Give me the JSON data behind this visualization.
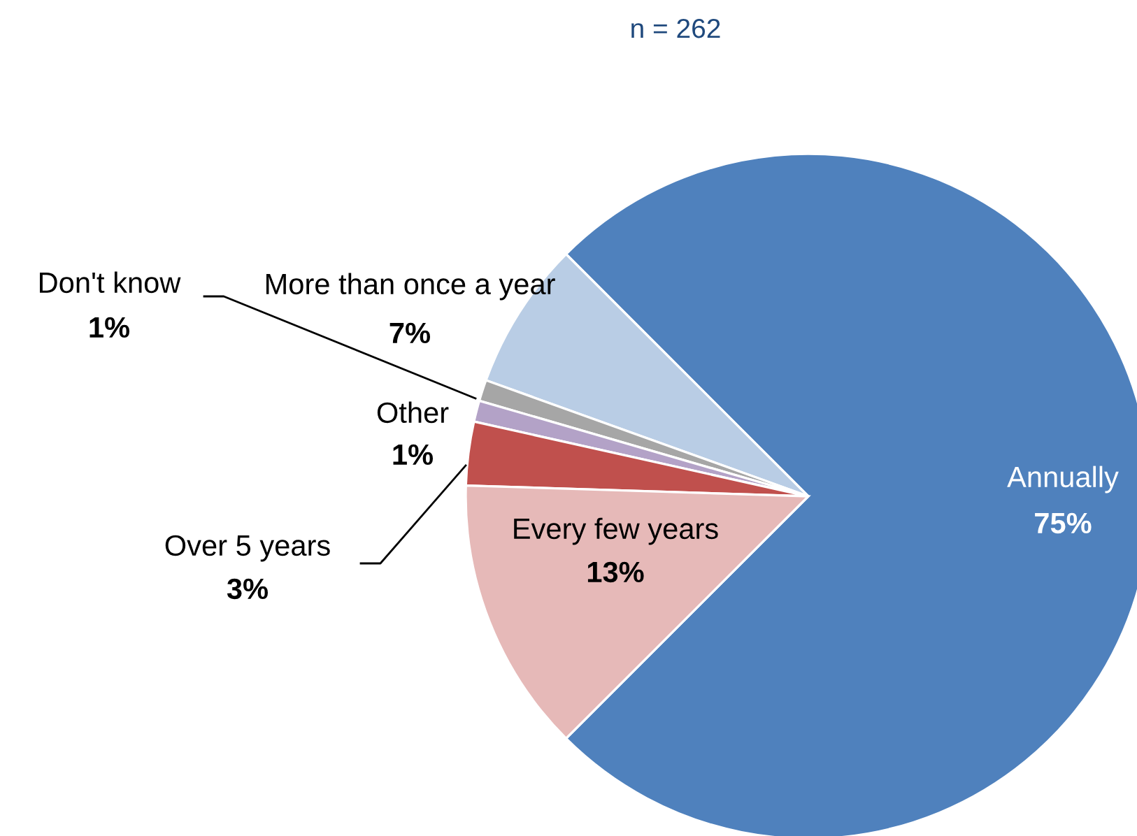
{
  "chart_data": {
    "type": "pie",
    "title": "n = 262",
    "categories": [
      "Annually",
      "More than once a year",
      "Don't know",
      "Other",
      "Over 5 years",
      "Every few years"
    ],
    "values": [
      75,
      7,
      1,
      1,
      3,
      13
    ],
    "value_labels": [
      "75%",
      "7%",
      "1%",
      "1%",
      "3%",
      "13%"
    ],
    "colors": [
      "#4f81bd",
      "#b9cde5",
      "#a6a6a6",
      "#b3a2c7",
      "#c0504d",
      "#e6b9b8"
    ]
  }
}
